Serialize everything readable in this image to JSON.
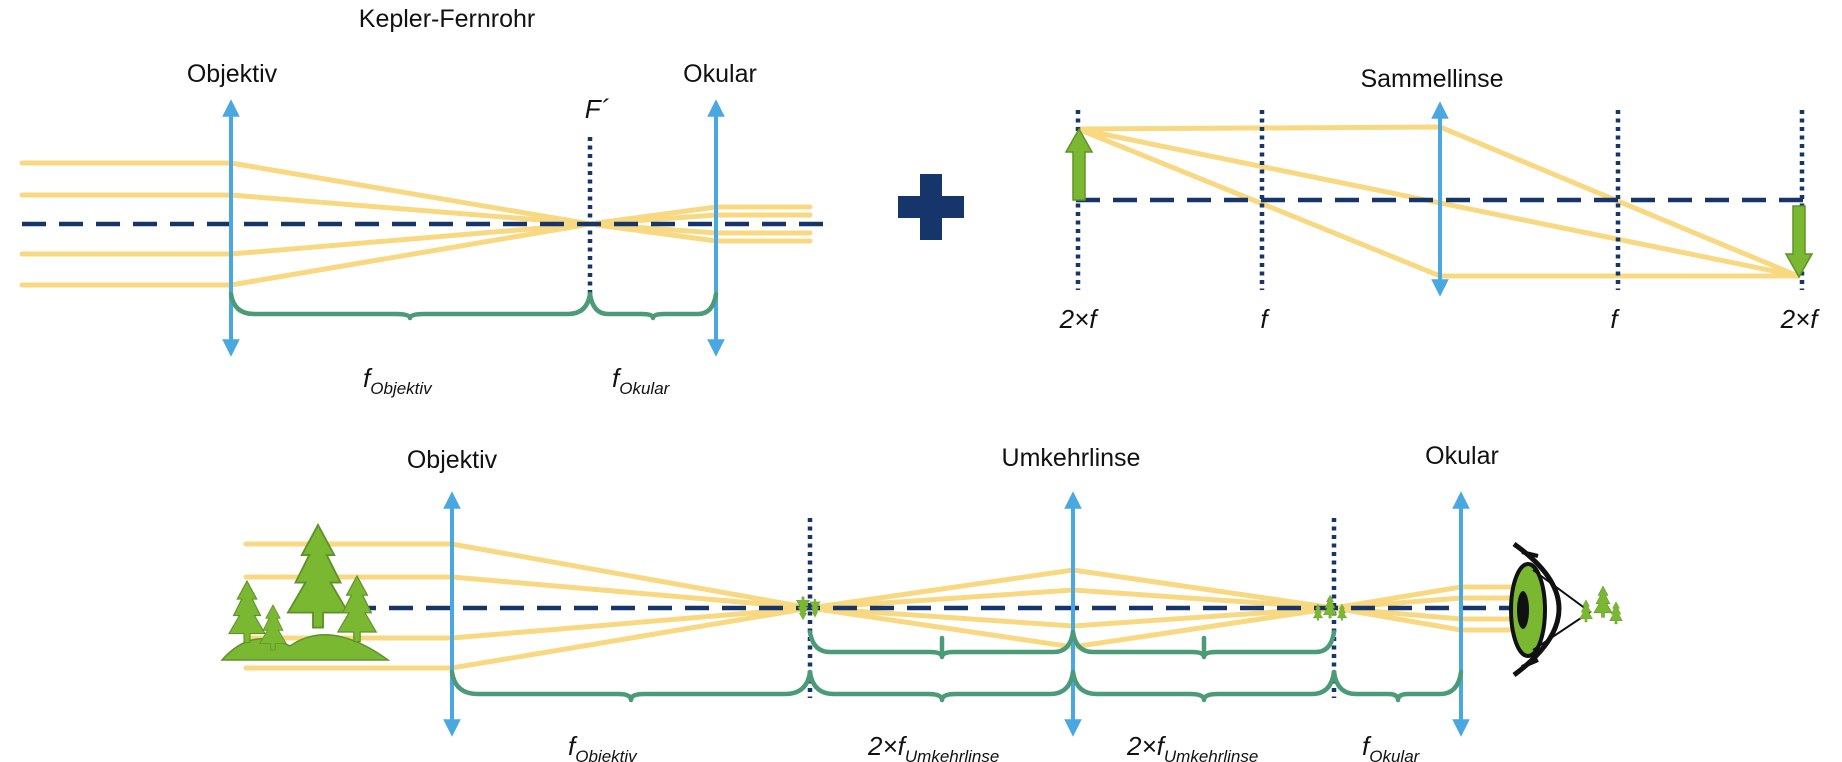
{
  "colors": {
    "ray": "#f8d981",
    "optical_axis": "#16366b",
    "lens": "#4aa8e0",
    "brace": "#4b9b78",
    "object": "#7bb832",
    "plus": "#16366b"
  },
  "icons": [
    "plus-icon",
    "tree-icon",
    "eye-icon",
    "arrow-object-icon"
  ],
  "kepler": {
    "title": "Kepler-Fernrohr",
    "objective_label": "Objektiv",
    "eyepiece_label": "Okular",
    "focal_point_label": "F´",
    "f_objective": {
      "base": "f",
      "sub": "Objektiv"
    },
    "f_eyepiece": {
      "base": "f",
      "sub": "Okular"
    }
  },
  "converging_lens": {
    "title": "Sammellinse",
    "marks": [
      "2×f",
      "f",
      "f",
      "2×f"
    ]
  },
  "terrestrial": {
    "objective_label": "Objektiv",
    "inverter_label": "Umkehrlinse",
    "eyepiece_label": "Okular",
    "f_objective": {
      "base": "f",
      "sub": "Objektiv"
    },
    "two_f_inverter_1": {
      "base": "2×f",
      "sub": "Umkehrlinse"
    },
    "two_f_inverter_2": {
      "base": "2×f",
      "sub": "Umkehrlinse"
    },
    "f_eyepiece": {
      "base": "f",
      "sub": "Okular"
    }
  }
}
